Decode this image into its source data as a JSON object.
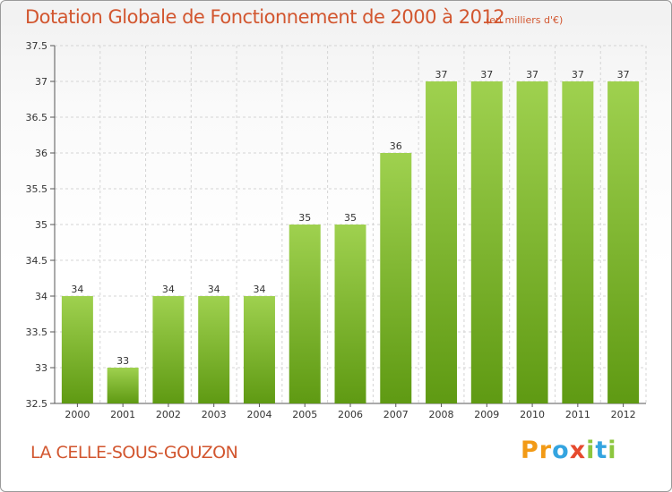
{
  "header": {
    "title": "Dotation Globale de Fonctionnement de 2000 à 2012",
    "subtitle": "(en milliers d'€)"
  },
  "footer": {
    "commune": "LA CELLE-SOUS-GOUZON",
    "logo": [
      "P",
      "r",
      "o",
      "x",
      "i",
      "t",
      "i"
    ]
  },
  "colors": {
    "title": "#d2562f",
    "bar_top": "#9fd14f",
    "bar_bottom": "#5f9a13",
    "logo": [
      "#f29a16",
      "#f29a16",
      "#34a4e0",
      "#e64a2e",
      "#8cc63f",
      "#34a4e0",
      "#8cc63f"
    ]
  },
  "chart_data": {
    "type": "bar",
    "categories": [
      "2000",
      "2001",
      "2002",
      "2003",
      "2004",
      "2005",
      "2006",
      "2007",
      "2008",
      "2009",
      "2010",
      "2011",
      "2012"
    ],
    "values": [
      34,
      33,
      34,
      34,
      34,
      35,
      35,
      36,
      37,
      37,
      37,
      37,
      37
    ],
    "labels": [
      "34",
      "33",
      "34",
      "34",
      "34",
      "35",
      "35",
      "36",
      "37",
      "37",
      "37",
      "37",
      "37"
    ],
    "ylim": [
      32.5,
      37.5
    ],
    "yticks": [
      32.5,
      33,
      33.5,
      34,
      34.5,
      35,
      35.5,
      36,
      36.5,
      37,
      37.5
    ],
    "ytick_labels": [
      "32.5",
      "33",
      "33.5",
      "34",
      "34.5",
      "35",
      "35.5",
      "36",
      "36.5",
      "37",
      "37.5"
    ],
    "grid": true,
    "legend": "none"
  }
}
